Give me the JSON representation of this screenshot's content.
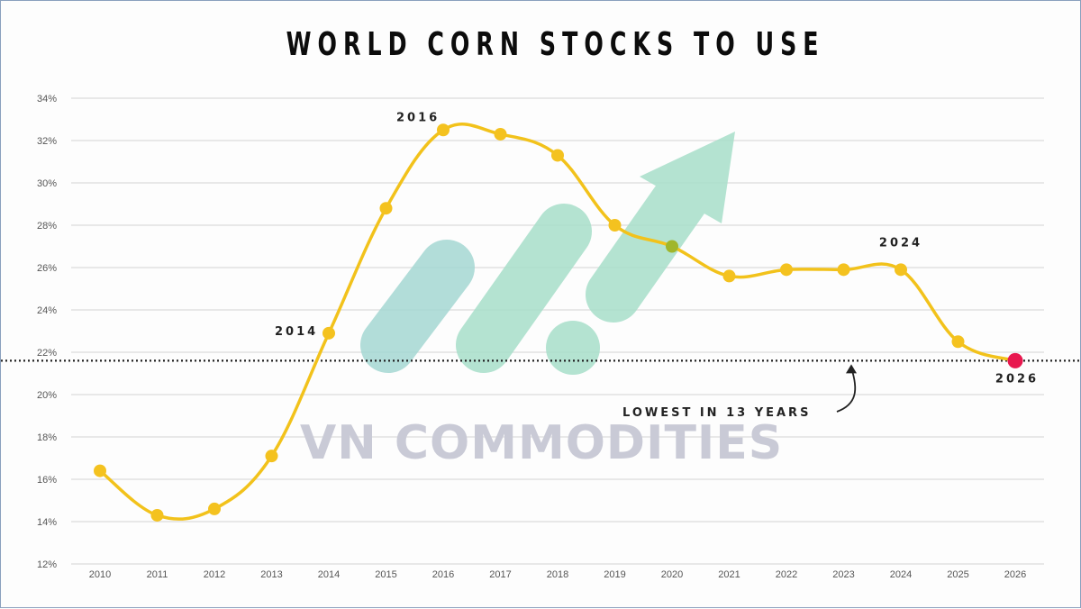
{
  "chart_data": {
    "type": "line",
    "title": "WORLD CORN STOCKS TO USE",
    "xlabel": "",
    "ylabel": "",
    "x": [
      "2010",
      "2011",
      "2012",
      "2013",
      "2014",
      "2015",
      "2016",
      "2017",
      "2018",
      "2019",
      "2020",
      "2021",
      "2022",
      "2023",
      "2024",
      "2025",
      "2026"
    ],
    "series": [
      {
        "name": "World corn stocks-to-use",
        "values": [
          16.4,
          14.3,
          14.6,
          17.1,
          22.9,
          28.8,
          32.5,
          32.3,
          31.3,
          28.0,
          27.0,
          25.6,
          25.9,
          25.9,
          25.9,
          22.5,
          21.6
        ],
        "color": "#f2c21b"
      }
    ],
    "ylim": [
      12,
      34
    ],
    "yticks": [
      "12%",
      "14%",
      "16%",
      "18%",
      "20%",
      "22%",
      "24%",
      "26%",
      "28%",
      "30%",
      "32%",
      "34%"
    ],
    "grid": true,
    "legend": "none",
    "reference_line": {
      "value": 21.6,
      "style": "dotted",
      "color": "#222222"
    },
    "annotations": [
      {
        "label": "2014",
        "x": "2014"
      },
      {
        "label": "2016",
        "x": "2016"
      },
      {
        "label": "2024",
        "x": "2024"
      },
      {
        "label": "2026",
        "x": "2026",
        "highlight_color": "#e8174e"
      },
      {
        "label": "LOWEST IN 13 YEARS",
        "target": "reference_line"
      }
    ],
    "highlight_point": {
      "x": "2020",
      "color": "#9bb52a"
    }
  },
  "watermark": {
    "text": "VN COMMODITIES"
  },
  "colors": {
    "line": "#f2c21b",
    "marker": "#f4c21f",
    "highlight_2020": "#a0b62b",
    "highlight_2026": "#e8174e",
    "grid": "#e2e2e2",
    "logo": "#a8dfca"
  }
}
